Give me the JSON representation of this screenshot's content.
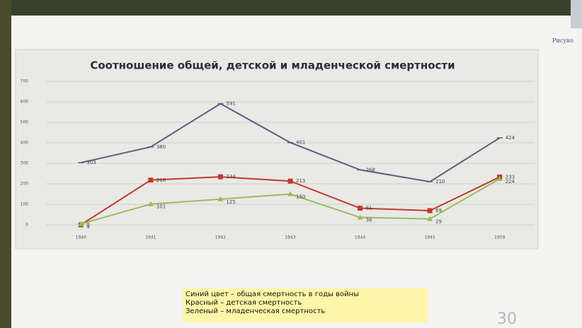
{
  "chart_data": {
    "type": "line",
    "title": "Соотношение общей, детской и младенческой смертности",
    "categories": [
      "1940",
      "1941",
      "1942",
      "1943",
      "1944",
      "1945",
      "1959"
    ],
    "series": [
      {
        "name": "Синий цвет – общая смертность в годы войны",
        "color": "#55627e",
        "values": [
          303,
          380,
          591,
          401,
          268,
          210,
          424
        ]
      },
      {
        "name": "Красный – детская смертность",
        "color": "#c0392b",
        "values": [
          0,
          218,
          234,
          213,
          81,
          69,
          233
        ]
      },
      {
        "name": "Зеленый – младенческая смертность",
        "color": "#9bbb59",
        "values": [
          4,
          101,
          125,
          150,
          36,
          29,
          224
        ]
      }
    ],
    "ylim": [
      0,
      700
    ],
    "yticks": [
      0,
      100,
      200,
      300,
      400,
      500,
      600,
      700
    ],
    "grid": true
  },
  "figure_caption": "Рисуно",
  "page_number": "30"
}
